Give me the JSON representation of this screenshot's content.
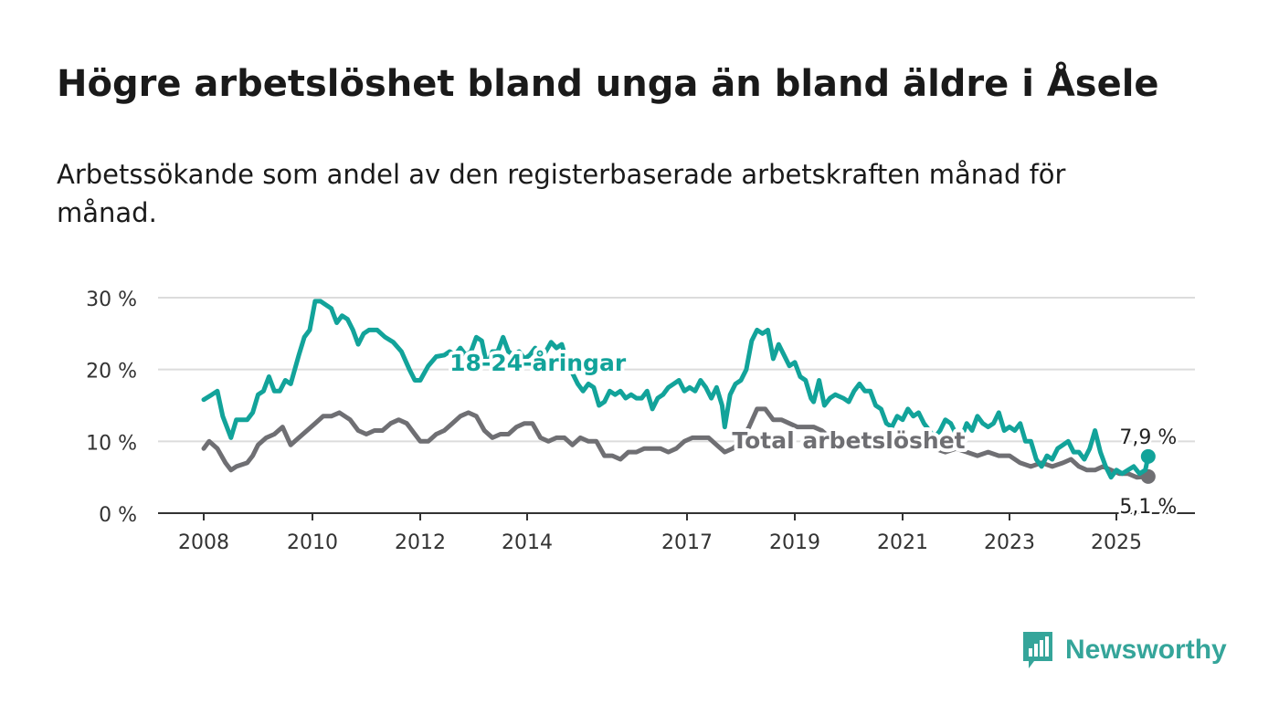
{
  "title": "Högre arbetslöshet bland unga än bland äldre i Åsele",
  "subtitle": "Arbetssökande som andel av den registerbaserade arbetskraften månad för månad.",
  "brand": {
    "name": "Newsworthy",
    "color": "#35a59a"
  },
  "chart_data": {
    "type": "line",
    "title": "Högre arbetslöshet bland unga än bland äldre i Åsele",
    "subtitle": "Arbetssökande som andel av den registerbaserade arbetskraften månad för månad.",
    "xlabel": "",
    "ylabel": "",
    "ylim": [
      0,
      30
    ],
    "yticks": [
      0,
      10,
      20,
      30
    ],
    "ytick_labels": [
      "0 %",
      "10 %",
      "20 %",
      "30 %"
    ],
    "xlim": [
      2008,
      2025.6
    ],
    "xticks": [
      2008,
      2010,
      2012,
      2014,
      2017,
      2019,
      2021,
      2023,
      2025
    ],
    "xtick_labels": [
      "2008",
      "2010",
      "2012",
      "2014",
      "2017",
      "2019",
      "2021",
      "2023",
      "2025"
    ],
    "grid": "horizontal",
    "series": [
      {
        "name": "18-24-åringar",
        "color": "#12a39a",
        "end_label": "7,9 %",
        "points": [
          [
            2008.0,
            15.8
          ],
          [
            2008.15,
            16.5
          ],
          [
            2008.25,
            17.0
          ],
          [
            2008.35,
            13.5
          ],
          [
            2008.5,
            10.5
          ],
          [
            2008.6,
            13.0
          ],
          [
            2008.8,
            13.0
          ],
          [
            2008.9,
            14.0
          ],
          [
            2009.0,
            16.5
          ],
          [
            2009.1,
            17.0
          ],
          [
            2009.2,
            19.0
          ],
          [
            2009.3,
            17.0
          ],
          [
            2009.4,
            17.0
          ],
          [
            2009.5,
            18.5
          ],
          [
            2009.6,
            18.0
          ],
          [
            2009.75,
            22.0
          ],
          [
            2009.85,
            24.5
          ],
          [
            2009.95,
            25.5
          ],
          [
            2010.05,
            29.5
          ],
          [
            2010.15,
            29.5
          ],
          [
            2010.25,
            29.0
          ],
          [
            2010.35,
            28.5
          ],
          [
            2010.45,
            26.5
          ],
          [
            2010.55,
            27.5
          ],
          [
            2010.65,
            27.0
          ],
          [
            2010.75,
            25.5
          ],
          [
            2010.85,
            23.5
          ],
          [
            2010.95,
            25.0
          ],
          [
            2011.05,
            25.5
          ],
          [
            2011.2,
            25.5
          ],
          [
            2011.35,
            24.5
          ],
          [
            2011.5,
            23.8
          ],
          [
            2011.65,
            22.5
          ],
          [
            2011.8,
            20.0
          ],
          [
            2011.9,
            18.5
          ],
          [
            2012.0,
            18.5
          ],
          [
            2012.15,
            20.5
          ],
          [
            2012.3,
            21.8
          ],
          [
            2012.45,
            22.0
          ],
          [
            2012.55,
            22.5
          ],
          [
            2012.65,
            22.0
          ],
          [
            2012.75,
            23.0
          ],
          [
            2012.85,
            22.0
          ],
          [
            2012.95,
            22.5
          ],
          [
            2013.05,
            24.5
          ],
          [
            2013.15,
            24.0
          ],
          [
            2013.25,
            20.5
          ],
          [
            2013.35,
            22.5
          ],
          [
            2013.45,
            22.5
          ],
          [
            2013.55,
            24.5
          ],
          [
            2013.65,
            22.5
          ],
          [
            2013.75,
            22.0
          ],
          [
            2013.85,
            22.5
          ],
          [
            2013.95,
            21.5
          ],
          [
            2014.05,
            22.0
          ],
          [
            2014.15,
            23.0
          ],
          [
            2014.25,
            21.5
          ],
          [
            2014.35,
            22.5
          ],
          [
            2014.45,
            23.8
          ],
          [
            2014.55,
            23.0
          ],
          [
            2014.65,
            23.5
          ],
          [
            2014.75,
            21.0
          ],
          [
            2014.85,
            19.5
          ],
          [
            2014.95,
            18.0
          ],
          [
            2015.05,
            17.0
          ],
          [
            2015.15,
            18.0
          ],
          [
            2015.25,
            17.5
          ],
          [
            2015.35,
            15.0
          ],
          [
            2015.45,
            15.5
          ],
          [
            2015.55,
            17.0
          ],
          [
            2015.65,
            16.5
          ],
          [
            2015.75,
            17.0
          ],
          [
            2015.85,
            16.0
          ],
          [
            2015.95,
            16.5
          ],
          [
            2016.05,
            16.0
          ],
          [
            2016.15,
            16.0
          ],
          [
            2016.25,
            17.0
          ],
          [
            2016.35,
            14.5
          ],
          [
            2016.45,
            16.0
          ],
          [
            2016.55,
            16.5
          ],
          [
            2016.65,
            17.5
          ],
          [
            2016.75,
            18.0
          ],
          [
            2016.85,
            18.5
          ],
          [
            2016.95,
            17.0
          ],
          [
            2017.05,
            17.5
          ],
          [
            2017.15,
            17.0
          ],
          [
            2017.25,
            18.5
          ],
          [
            2017.35,
            17.5
          ],
          [
            2017.45,
            16.0
          ],
          [
            2017.55,
            17.5
          ],
          [
            2017.65,
            15.0
          ],
          [
            2017.7,
            12.0
          ],
          [
            2017.8,
            16.5
          ],
          [
            2017.9,
            18.0
          ],
          [
            2018.0,
            18.5
          ],
          [
            2018.1,
            20.0
          ],
          [
            2018.2,
            24.0
          ],
          [
            2018.3,
            25.5
          ],
          [
            2018.4,
            25.0
          ],
          [
            2018.5,
            25.5
          ],
          [
            2018.6,
            21.5
          ],
          [
            2018.7,
            23.5
          ],
          [
            2018.8,
            22.0
          ],
          [
            2018.9,
            20.5
          ],
          [
            2019.0,
            21.0
          ],
          [
            2019.1,
            19.0
          ],
          [
            2019.2,
            18.5
          ],
          [
            2019.3,
            16.0
          ],
          [
            2019.35,
            15.5
          ],
          [
            2019.45,
            18.5
          ],
          [
            2019.55,
            15.0
          ],
          [
            2019.65,
            16.0
          ],
          [
            2019.75,
            16.5
          ],
          [
            2019.9,
            16.0
          ],
          [
            2020.0,
            15.5
          ],
          [
            2020.1,
            17.0
          ],
          [
            2020.2,
            18.0
          ],
          [
            2020.3,
            17.0
          ],
          [
            2020.4,
            17.0
          ],
          [
            2020.5,
            15.0
          ],
          [
            2020.6,
            14.5
          ],
          [
            2020.7,
            12.5
          ],
          [
            2020.8,
            12.0
          ],
          [
            2020.9,
            13.5
          ],
          [
            2021.0,
            13.0
          ],
          [
            2021.1,
            14.5
          ],
          [
            2021.2,
            13.5
          ],
          [
            2021.3,
            14.0
          ],
          [
            2021.4,
            12.5
          ],
          [
            2021.5,
            11.5
          ],
          [
            2021.6,
            10.5
          ],
          [
            2021.7,
            11.5
          ],
          [
            2021.8,
            13.0
          ],
          [
            2021.9,
            12.5
          ],
          [
            2022.0,
            11.0
          ],
          [
            2022.1,
            10.5
          ],
          [
            2022.2,
            12.5
          ],
          [
            2022.3,
            11.5
          ],
          [
            2022.4,
            13.5
          ],
          [
            2022.5,
            12.5
          ],
          [
            2022.6,
            12.0
          ],
          [
            2022.7,
            12.5
          ],
          [
            2022.8,
            14.0
          ],
          [
            2022.9,
            11.5
          ],
          [
            2023.0,
            12.0
          ],
          [
            2023.1,
            11.5
          ],
          [
            2023.2,
            12.5
          ],
          [
            2023.3,
            10.0
          ],
          [
            2023.4,
            10.0
          ],
          [
            2023.5,
            7.5
          ],
          [
            2023.6,
            6.5
          ],
          [
            2023.7,
            8.0
          ],
          [
            2023.8,
            7.5
          ],
          [
            2023.9,
            9.0
          ],
          [
            2024.0,
            9.5
          ],
          [
            2024.1,
            10.0
          ],
          [
            2024.2,
            8.5
          ],
          [
            2024.3,
            8.5
          ],
          [
            2024.4,
            7.5
          ],
          [
            2024.5,
            9.0
          ],
          [
            2024.6,
            11.5
          ],
          [
            2024.7,
            8.5
          ],
          [
            2024.8,
            6.5
          ],
          [
            2024.9,
            5.0
          ],
          [
            2025.0,
            6.0
          ],
          [
            2025.1,
            5.5
          ],
          [
            2025.2,
            6.0
          ],
          [
            2025.3,
            6.5
          ],
          [
            2025.4,
            5.5
          ],
          [
            2025.5,
            6.0
          ],
          [
            2025.55,
            7.9
          ]
        ]
      },
      {
        "name": "Total arbetslöshet",
        "color": "#6f6f73",
        "end_label": "5,1 %",
        "points": [
          [
            2008.0,
            9.0
          ],
          [
            2008.1,
            10.0
          ],
          [
            2008.25,
            9.0
          ],
          [
            2008.4,
            7.0
          ],
          [
            2008.5,
            6.0
          ],
          [
            2008.6,
            6.5
          ],
          [
            2008.8,
            7.0
          ],
          [
            2008.9,
            8.0
          ],
          [
            2009.0,
            9.5
          ],
          [
            2009.15,
            10.5
          ],
          [
            2009.3,
            11.0
          ],
          [
            2009.45,
            12.0
          ],
          [
            2009.6,
            9.5
          ],
          [
            2009.75,
            10.5
          ],
          [
            2009.9,
            11.5
          ],
          [
            2010.05,
            12.5
          ],
          [
            2010.2,
            13.5
          ],
          [
            2010.35,
            13.5
          ],
          [
            2010.5,
            14.0
          ],
          [
            2010.6,
            13.5
          ],
          [
            2010.7,
            13.0
          ],
          [
            2010.85,
            11.5
          ],
          [
            2011.0,
            11.0
          ],
          [
            2011.15,
            11.5
          ],
          [
            2011.3,
            11.5
          ],
          [
            2011.45,
            12.5
          ],
          [
            2011.6,
            13.0
          ],
          [
            2011.75,
            12.5
          ],
          [
            2011.9,
            11.0
          ],
          [
            2012.0,
            10.0
          ],
          [
            2012.15,
            10.0
          ],
          [
            2012.3,
            11.0
          ],
          [
            2012.45,
            11.5
          ],
          [
            2012.6,
            12.5
          ],
          [
            2012.75,
            13.5
          ],
          [
            2012.9,
            14.0
          ],
          [
            2013.05,
            13.5
          ],
          [
            2013.2,
            11.5
          ],
          [
            2013.35,
            10.5
          ],
          [
            2013.5,
            11.0
          ],
          [
            2013.65,
            11.0
          ],
          [
            2013.8,
            12.0
          ],
          [
            2013.95,
            12.5
          ],
          [
            2014.1,
            12.5
          ],
          [
            2014.25,
            10.5
          ],
          [
            2014.4,
            10.0
          ],
          [
            2014.55,
            10.5
          ],
          [
            2014.7,
            10.5
          ],
          [
            2014.85,
            9.5
          ],
          [
            2015.0,
            10.5
          ],
          [
            2015.15,
            10.0
          ],
          [
            2015.3,
            10.0
          ],
          [
            2015.45,
            8.0
          ],
          [
            2015.6,
            8.0
          ],
          [
            2015.75,
            7.5
          ],
          [
            2015.9,
            8.5
          ],
          [
            2016.05,
            8.5
          ],
          [
            2016.2,
            9.0
          ],
          [
            2016.35,
            9.0
          ],
          [
            2016.5,
            9.0
          ],
          [
            2016.65,
            8.5
          ],
          [
            2016.8,
            9.0
          ],
          [
            2016.95,
            10.0
          ],
          [
            2017.1,
            10.5
          ],
          [
            2017.25,
            10.5
          ],
          [
            2017.4,
            10.5
          ],
          [
            2017.55,
            9.5
          ],
          [
            2017.7,
            8.5
          ],
          [
            2017.85,
            9.0
          ],
          [
            2018.0,
            10.0
          ],
          [
            2018.15,
            12.0
          ],
          [
            2018.3,
            14.5
          ],
          [
            2018.45,
            14.5
          ],
          [
            2018.6,
            13.0
          ],
          [
            2018.75,
            13.0
          ],
          [
            2018.9,
            12.5
          ],
          [
            2019.05,
            12.0
          ],
          [
            2019.2,
            12.0
          ],
          [
            2019.35,
            12.0
          ],
          [
            2019.5,
            11.5
          ],
          [
            2019.65,
            10.5
          ],
          [
            2019.8,
            10.0
          ],
          [
            2020.0,
            10.0
          ],
          [
            2020.2,
            10.5
          ],
          [
            2020.4,
            10.0
          ],
          [
            2020.6,
            9.5
          ],
          [
            2020.8,
            9.5
          ],
          [
            2021.0,
            9.0
          ],
          [
            2021.2,
            9.5
          ],
          [
            2021.4,
            9.0
          ],
          [
            2021.6,
            9.0
          ],
          [
            2021.8,
            8.5
          ],
          [
            2022.0,
            9.0
          ],
          [
            2022.2,
            8.5
          ],
          [
            2022.4,
            8.0
          ],
          [
            2022.6,
            8.5
          ],
          [
            2022.8,
            8.0
          ],
          [
            2023.0,
            8.0
          ],
          [
            2023.2,
            7.0
          ],
          [
            2023.4,
            6.5
          ],
          [
            2023.6,
            7.0
          ],
          [
            2023.8,
            6.5
          ],
          [
            2024.0,
            7.0
          ],
          [
            2024.15,
            7.5
          ],
          [
            2024.3,
            6.5
          ],
          [
            2024.45,
            6.0
          ],
          [
            2024.6,
            6.0
          ],
          [
            2024.75,
            6.5
          ],
          [
            2024.9,
            6.0
          ],
          [
            2025.05,
            5.5
          ],
          [
            2025.2,
            5.5
          ],
          [
            2025.35,
            5.0
          ],
          [
            2025.55,
            5.1
          ]
        ]
      }
    ],
    "annotations": [
      {
        "series": "18-24-åringar",
        "text": "18-24-åringar",
        "x": 2014.2,
        "y": 19.8
      },
      {
        "series": "Total arbetslöshet",
        "text": "Total arbetslöshet",
        "x": 2020.0,
        "y": 9.0
      }
    ]
  }
}
